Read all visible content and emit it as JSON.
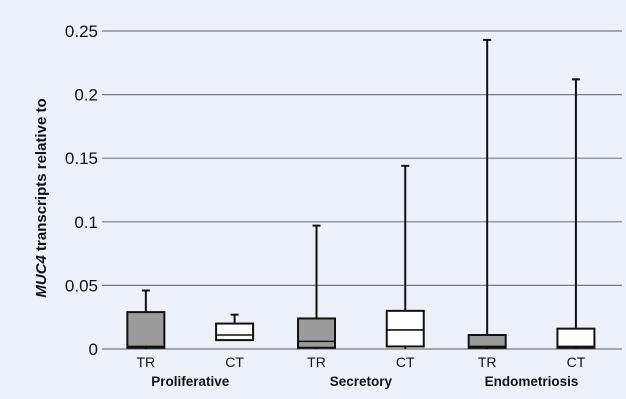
{
  "chart_data": {
    "type": "box",
    "ylabel_prefix": "MUC4",
    "ylabel_rest": " transcripts relative to",
    "ylim": [
      0,
      0.25
    ],
    "yticks": [
      0,
      0.05,
      0.1,
      0.15,
      0.2,
      0.25
    ],
    "ytick_labels": [
      "0",
      "0.05",
      "0.1",
      "0.15",
      "0.2",
      "0.25"
    ],
    "grid": "horizontal",
    "groups": [
      {
        "name": "Proliferative",
        "boxes": [
          {
            "label": "TR",
            "fill": "#9b9b9b",
            "min": 0.0,
            "q1": 0.001,
            "median": 0.002,
            "q3": 0.029,
            "max": 0.046
          },
          {
            "label": "CT",
            "fill": "#ffffff",
            "min": 0.007,
            "q1": 0.007,
            "median": 0.011,
            "q3": 0.02,
            "max": 0.027
          }
        ]
      },
      {
        "name": "Secretory",
        "boxes": [
          {
            "label": "TR",
            "fill": "#9b9b9b",
            "min": 0.0,
            "q1": 0.001,
            "median": 0.006,
            "q3": 0.024,
            "max": 0.097
          },
          {
            "label": "CT",
            "fill": "#ffffff",
            "min": 0.0,
            "q1": 0.002,
            "median": 0.015,
            "q3": 0.03,
            "max": 0.144
          }
        ]
      },
      {
        "name": "Endometriosis",
        "boxes": [
          {
            "label": "TR",
            "fill": "#9b9b9b",
            "min": 0.0,
            "q1": 0.001,
            "median": 0.002,
            "q3": 0.011,
            "max": 0.243
          },
          {
            "label": "CT",
            "fill": "#ffffff",
            "min": 0.0,
            "q1": 0.001,
            "median": 0.002,
            "q3": 0.016,
            "max": 0.212
          }
        ]
      }
    ]
  }
}
